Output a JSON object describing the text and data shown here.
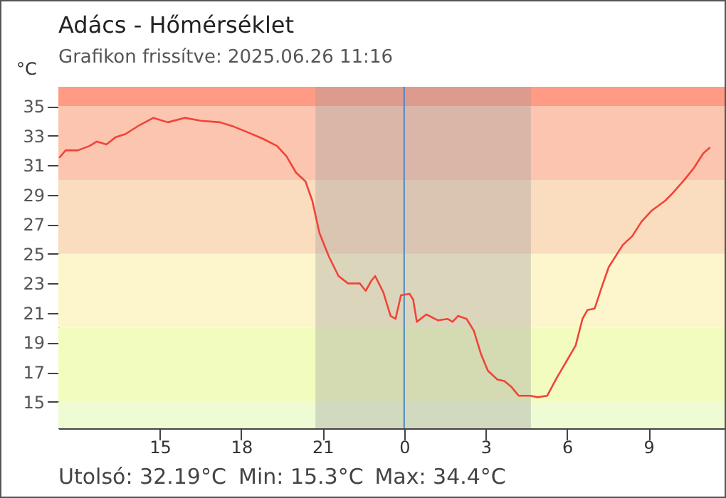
{
  "chart_data": {
    "type": "line",
    "title": "Adács - Hőmérséklet",
    "subtitle": "Grafikon frissítve: 2025.06.26 11:16",
    "ylabel": "°C",
    "x": [
      "2025-06-25T11:18",
      "2025-06-25T11:32",
      "2025-06-25T11:59",
      "2025-06-25T12:25",
      "2025-06-25T12:41",
      "2025-06-25T13:02",
      "2025-06-25T13:23",
      "2025-06-25T13:44",
      "2025-06-25T14:15",
      "2025-06-25T14:46",
      "2025-06-25T15:18",
      "2025-06-25T15:55",
      "2025-06-25T16:31",
      "2025-06-25T17:13",
      "2025-06-25T17:44",
      "2025-06-25T18:16",
      "2025-06-25T18:47",
      "2025-06-25T19:19",
      "2025-06-25T19:40",
      "2025-06-25T20:01",
      "2025-06-25T20:22",
      "2025-06-25T20:37",
      "2025-06-25T20:53",
      "2025-06-25T21:14",
      "2025-06-25T21:35",
      "2025-06-25T21:56",
      "2025-06-25T22:22",
      "2025-06-25T22:35",
      "2025-06-25T22:48",
      "2025-06-25T22:56",
      "2025-06-25T23:14",
      "2025-06-25T23:30",
      "2025-06-25T23:41",
      "2025-06-25T23:53",
      "2025-06-26T00:12",
      "2025-06-26T00:20",
      "2025-06-26T00:28",
      "2025-06-26T00:49",
      "2025-06-26T01:15",
      "2025-06-26T01:36",
      "2025-06-26T01:47",
      "2025-06-26T01:59",
      "2025-06-26T02:18",
      "2025-06-26T02:34",
      "2025-06-26T02:50",
      "2025-06-26T03:05",
      "2025-06-26T03:26",
      "2025-06-26T03:41",
      "2025-06-26T03:57",
      "2025-06-26T04:13",
      "2025-06-26T04:39",
      "2025-06-26T04:55",
      "2025-06-26T05:16",
      "2025-06-26T05:37",
      "2025-06-26T05:58",
      "2025-06-26T06:19",
      "2025-06-26T06:34",
      "2025-06-26T06:45",
      "2025-06-26T07:01",
      "2025-06-26T07:16",
      "2025-06-26T07:32",
      "2025-06-26T08:03",
      "2025-06-26T08:24",
      "2025-06-26T08:45",
      "2025-06-26T09:06",
      "2025-06-26T09:37",
      "2025-06-26T09:53",
      "2025-06-26T10:19",
      "2025-06-26T10:40",
      "2025-06-26T11:01",
      "2025-06-26T11:16"
    ],
    "series": [
      {
        "color": "#f04438",
        "values": [
          31.5,
          32.0,
          32.0,
          32.3,
          32.6,
          32.4,
          32.9,
          33.1,
          33.7,
          34.2,
          33.9,
          34.2,
          34.0,
          33.9,
          33.6,
          33.2,
          32.8,
          32.3,
          31.6,
          30.5,
          29.9,
          28.6,
          26.4,
          24.8,
          23.5,
          23.0,
          23.0,
          22.5,
          23.2,
          23.5,
          22.4,
          20.8,
          20.6,
          22.2,
          22.3,
          21.9,
          20.4,
          20.9,
          20.5,
          20.6,
          20.4,
          20.8,
          20.6,
          19.8,
          18.2,
          17.1,
          16.5,
          16.4,
          16.0,
          15.4,
          15.4,
          15.3,
          15.4,
          16.6,
          17.7,
          18.8,
          20.6,
          21.2,
          21.3,
          22.7,
          24.1,
          25.6,
          26.2,
          27.2,
          27.9,
          28.6,
          29.1,
          30.0,
          30.8,
          31.8,
          32.2
        ]
      }
    ],
    "xlim": [
      "2025-06-25T11:16",
      "2025-06-26T11:48"
    ],
    "xticks": [
      {
        "value": "2025-06-25T15:00",
        "label": "15"
      },
      {
        "value": "2025-06-25T18:00",
        "label": "18"
      },
      {
        "value": "2025-06-25T21:00",
        "label": "21"
      },
      {
        "value": "2025-06-26T00:00",
        "label": "0"
      },
      {
        "value": "2025-06-26T03:00",
        "label": "3"
      },
      {
        "value": "2025-06-26T06:00",
        "label": "6"
      },
      {
        "value": "2025-06-26T09:00",
        "label": "9"
      }
    ],
    "ylim": [
      13.2,
      36.3
    ],
    "yticks": [
      15,
      17,
      19,
      21,
      23,
      25,
      27,
      29,
      31,
      33,
      35
    ],
    "bands": [
      {
        "axis": "y",
        "from": 13.2,
        "to": 15,
        "color": "#eefbd3"
      },
      {
        "axis": "y",
        "from": 15,
        "to": 20,
        "color": "#f3fcbf"
      },
      {
        "axis": "y",
        "from": 20,
        "to": 25,
        "color": "#fdf6cc"
      },
      {
        "axis": "y",
        "from": 25,
        "to": 30,
        "color": "#fadcbf"
      },
      {
        "axis": "y",
        "from": 30,
        "to": 35,
        "color": "#fcc5b0"
      },
      {
        "axis": "y",
        "from": 35,
        "to": 36.3,
        "color": "#ff9b85"
      },
      {
        "axis": "x",
        "from": "2025-06-25T20:44",
        "to": "2025-06-26T04:40",
        "color": "#9a9a9a"
      }
    ],
    "ref_lines": [
      {
        "axis": "x",
        "value": "2025-06-26T00:00",
        "color": "#4a86c8"
      }
    ],
    "annotations": [
      "Utolsó: 32.19°C",
      "Min: 15.3°C",
      "Max: 34.4°C"
    ]
  }
}
